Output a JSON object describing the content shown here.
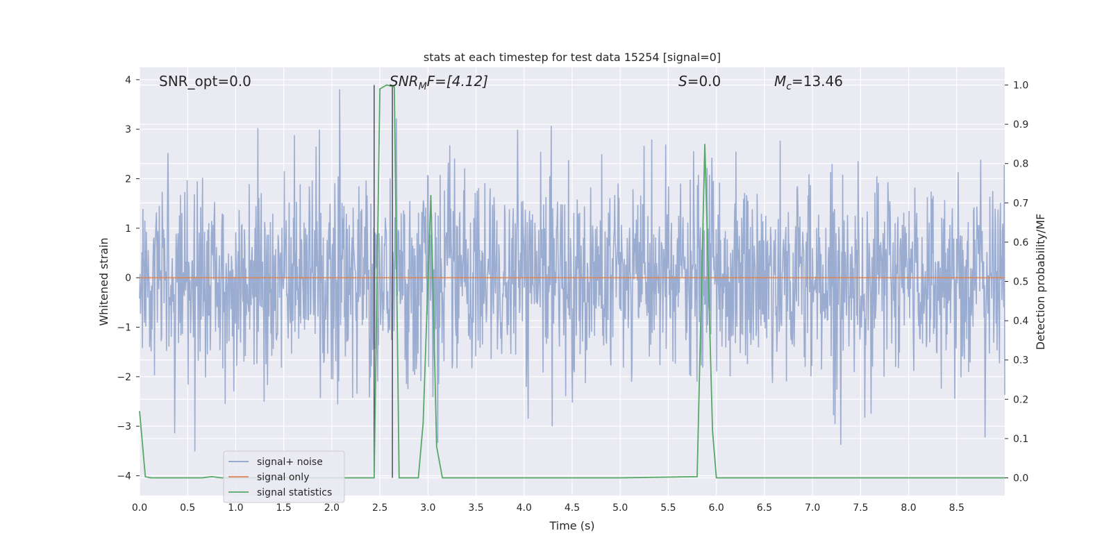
{
  "chart_data": {
    "type": "line",
    "title": "stats at each timestep for test data 15254 [signal=0]",
    "xlabel": "Time (s)",
    "ylabel": "Whitened strain",
    "ylabel_right": "Detection probability/MF",
    "xlim": [
      0.0,
      9.0
    ],
    "ylim": [
      -4.4,
      4.25
    ],
    "ylim_right": [
      -0.045,
      1.045
    ],
    "x_ticks": [
      "0.0",
      "0.5",
      "1.0",
      "1.5",
      "2.0",
      "2.5",
      "3.0",
      "3.5",
      "4.0",
      "4.5",
      "5.0",
      "5.5",
      "6.0",
      "6.5",
      "7.0",
      "7.5",
      "8.0",
      "8.5"
    ],
    "y_ticks": [
      "4",
      "3",
      "2",
      "1",
      "0",
      "−1",
      "−2",
      "−3",
      "−4"
    ],
    "y_ticks_right": [
      "1.0",
      "0.9",
      "0.8",
      "0.7",
      "0.6",
      "0.5",
      "0.4",
      "0.3",
      "0.2",
      "0.1",
      "0.0"
    ],
    "grid": true,
    "legend_position": "lower-left",
    "annotations": {
      "snr_opt": "SNR_opt=0.0",
      "snr_mf_main": "SNR",
      "snr_mf_sub": "M",
      "snr_mf_rest": "F=[4.12]",
      "s_main": "S",
      "s_rest": "=0.0",
      "mc_main": "M",
      "mc_sub": "c",
      "mc_rest": "=13.46"
    },
    "series": [
      {
        "name": "signal+ noise",
        "color": "#8da1cb",
        "description_values": "whitened noise, approx. amplitude envelope 0.0 ± 4"
      },
      {
        "name": "signal only",
        "color": "#dd8452",
        "x": [
          0.0,
          9.0
        ],
        "y": [
          0.0,
          0.0
        ]
      },
      {
        "name": "signal statistics",
        "color": "#55a868",
        "axis": "right",
        "x": [
          0.0,
          0.06,
          0.12,
          0.3,
          0.5,
          0.65,
          0.75,
          0.85,
          1.0,
          1.5,
          2.0,
          2.44,
          2.5,
          2.57,
          2.65,
          2.7,
          2.8,
          2.9,
          2.95,
          3.03,
          3.09,
          3.15,
          3.5,
          4.0,
          5.0,
          5.8,
          5.88,
          5.96,
          6.0,
          6.5,
          7.0,
          8.0,
          9.0
        ],
        "y": [
          0.17,
          0.003,
          0.0,
          0.0,
          0.0,
          0.0,
          0.003,
          0.0,
          0.0,
          0.0,
          0.0,
          0.0,
          0.99,
          1.0,
          0.995,
          0.0,
          0.0,
          0.0,
          0.14,
          0.72,
          0.08,
          0.0,
          0.0,
          0.0,
          0.0,
          0.003,
          0.85,
          0.12,
          0.0,
          0.0,
          0.0,
          0.0,
          0.0
        ]
      }
    ],
    "markers": {
      "color": "#4c4c5c",
      "x": [
        2.44,
        2.63
      ]
    }
  }
}
